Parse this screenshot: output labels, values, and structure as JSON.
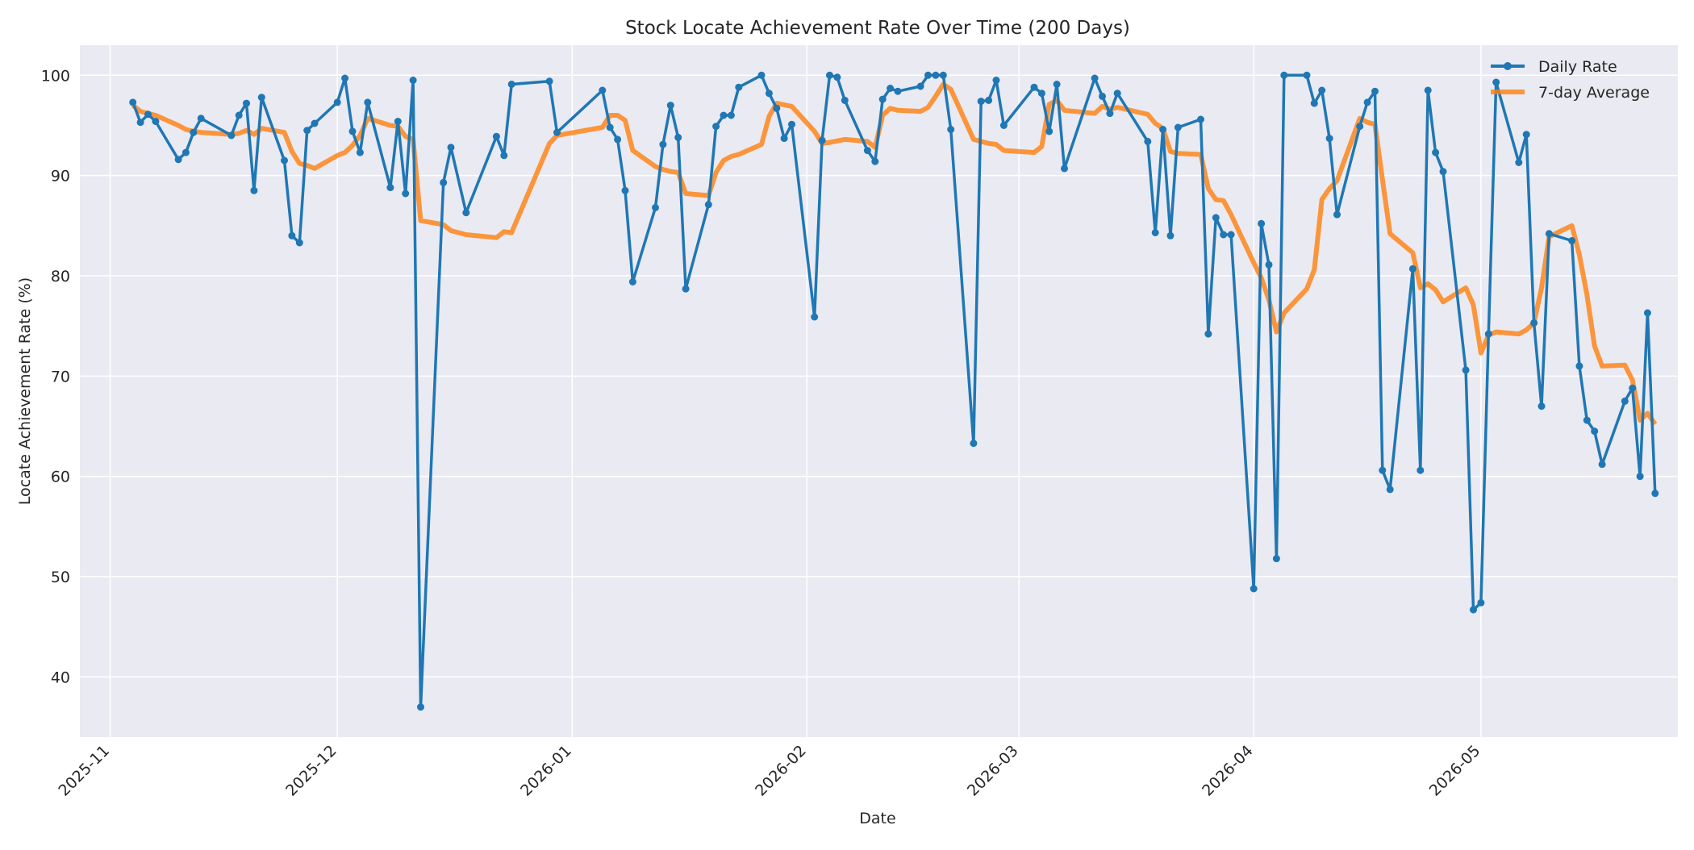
{
  "chart_data": {
    "type": "line",
    "title": "Stock Locate Achievement Rate Over Time (200 Days)",
    "xlabel": "Date",
    "ylabel": "Locate Achievement Rate (%)",
    "x_range": [
      "2025-10-28",
      "2026-05-27"
    ],
    "ylim": [
      34,
      103
    ],
    "y_ticks": [
      40,
      50,
      60,
      70,
      80,
      90,
      100
    ],
    "x_ticks": [
      {
        "date": "2025-11-01",
        "label": "2025-11"
      },
      {
        "date": "2025-12-01",
        "label": "2025-12"
      },
      {
        "date": "2026-01-01",
        "label": "2026-01"
      },
      {
        "date": "2026-02-01",
        "label": "2026-02"
      },
      {
        "date": "2026-03-01",
        "label": "2026-03"
      },
      {
        "date": "2026-04-01",
        "label": "2026-04"
      },
      {
        "date": "2026-05-01",
        "label": "2026-05"
      }
    ],
    "grid": true,
    "legend_position": "top-right",
    "colors": {
      "daily": "#1f77b4",
      "avg": "#ff7f0e",
      "plot_bg": "#eaeaf2"
    },
    "series": [
      {
        "name": "Daily Rate",
        "style": "line-markers",
        "points": [
          [
            "2025-11-04",
            97.3
          ],
          [
            "2025-11-05",
            95.3
          ],
          [
            "2025-11-06",
            96.1
          ],
          [
            "2025-11-07",
            95.4
          ],
          [
            "2025-11-10",
            91.6
          ],
          [
            "2025-11-11",
            92.3
          ],
          [
            "2025-11-12",
            94.3
          ],
          [
            "2025-11-13",
            95.7
          ],
          [
            "2025-11-17",
            94.0
          ],
          [
            "2025-11-18",
            96.0
          ],
          [
            "2025-11-19",
            97.2
          ],
          [
            "2025-11-20",
            88.5
          ],
          [
            "2025-11-21",
            97.8
          ],
          [
            "2025-11-24",
            91.5
          ],
          [
            "2025-11-25",
            84.0
          ],
          [
            "2025-11-26",
            83.3
          ],
          [
            "2025-11-27",
            94.5
          ],
          [
            "2025-11-28",
            95.2
          ],
          [
            "2025-12-01",
            97.3
          ],
          [
            "2025-12-02",
            99.7
          ],
          [
            "2025-12-03",
            94.4
          ],
          [
            "2025-12-04",
            92.3
          ],
          [
            "2025-12-05",
            97.3
          ],
          [
            "2025-12-08",
            88.8
          ],
          [
            "2025-12-09",
            95.4
          ],
          [
            "2025-12-10",
            88.2
          ],
          [
            "2025-12-11",
            99.5
          ],
          [
            "2025-12-12",
            37.0
          ],
          [
            "2025-12-15",
            89.3
          ],
          [
            "2025-12-16",
            92.8
          ],
          [
            "2025-12-18",
            86.3
          ],
          [
            "2025-12-22",
            93.9
          ],
          [
            "2025-12-23",
            92.0
          ],
          [
            "2025-12-24",
            99.1
          ],
          [
            "2025-12-29",
            99.4
          ],
          [
            "2025-12-30",
            94.3
          ],
          [
            "2026-01-05",
            98.5
          ],
          [
            "2026-01-06",
            94.8
          ],
          [
            "2026-01-07",
            93.6
          ],
          [
            "2026-01-08",
            88.5
          ],
          [
            "2026-01-09",
            79.4
          ],
          [
            "2026-01-12",
            86.8
          ],
          [
            "2026-01-13",
            93.1
          ],
          [
            "2026-01-14",
            97.0
          ],
          [
            "2026-01-15",
            93.8
          ],
          [
            "2026-01-16",
            78.7
          ],
          [
            "2026-01-19",
            87.1
          ],
          [
            "2026-01-20",
            94.9
          ],
          [
            "2026-01-21",
            96.0
          ],
          [
            "2026-01-22",
            96.0
          ],
          [
            "2026-01-23",
            98.8
          ],
          [
            "2026-01-26",
            100.0
          ],
          [
            "2026-01-27",
            98.2
          ],
          [
            "2026-01-28",
            96.7
          ],
          [
            "2026-01-29",
            93.7
          ],
          [
            "2026-01-30",
            95.1
          ],
          [
            "2026-02-02",
            75.9
          ],
          [
            "2026-02-03",
            93.5
          ],
          [
            "2026-02-04",
            100.0
          ],
          [
            "2026-02-05",
            99.8
          ],
          [
            "2026-02-06",
            97.5
          ],
          [
            "2026-02-09",
            92.5
          ],
          [
            "2026-02-10",
            91.4
          ],
          [
            "2026-02-11",
            97.6
          ],
          [
            "2026-02-12",
            98.7
          ],
          [
            "2026-02-13",
            98.4
          ],
          [
            "2026-02-16",
            98.9
          ],
          [
            "2026-02-17",
            100.0
          ],
          [
            "2026-02-18",
            100.0
          ],
          [
            "2026-02-19",
            100.0
          ],
          [
            "2026-02-20",
            94.6
          ],
          [
            "2026-02-23",
            63.3
          ],
          [
            "2026-02-24",
            97.4
          ],
          [
            "2026-02-25",
            97.5
          ],
          [
            "2026-02-26",
            99.5
          ],
          [
            "2026-02-27",
            95.0
          ],
          [
            "2026-03-03",
            98.8
          ],
          [
            "2026-03-04",
            98.2
          ],
          [
            "2026-03-05",
            94.4
          ],
          [
            "2026-03-06",
            99.1
          ],
          [
            "2026-03-07",
            90.7
          ],
          [
            "2026-03-11",
            99.7
          ],
          [
            "2026-03-12",
            97.9
          ],
          [
            "2026-03-13",
            96.2
          ],
          [
            "2026-03-14",
            98.2
          ],
          [
            "2026-03-18",
            93.4
          ],
          [
            "2026-03-19",
            84.3
          ],
          [
            "2026-03-20",
            94.6
          ],
          [
            "2026-03-21",
            84.0
          ],
          [
            "2026-03-22",
            94.8
          ],
          [
            "2026-03-25",
            95.6
          ],
          [
            "2026-03-26",
            74.2
          ],
          [
            "2026-03-27",
            85.8
          ],
          [
            "2026-03-28",
            84.1
          ],
          [
            "2026-03-29",
            84.1
          ],
          [
            "2026-04-01",
            48.8
          ],
          [
            "2026-04-02",
            85.2
          ],
          [
            "2026-04-03",
            81.1
          ],
          [
            "2026-04-04",
            51.8
          ],
          [
            "2026-04-05",
            100.0
          ],
          [
            "2026-04-08",
            100.0
          ],
          [
            "2026-04-09",
            97.2
          ],
          [
            "2026-04-10",
            98.5
          ],
          [
            "2026-04-11",
            93.7
          ],
          [
            "2026-04-12",
            86.1
          ],
          [
            "2026-04-15",
            94.9
          ],
          [
            "2026-04-16",
            97.3
          ],
          [
            "2026-04-17",
            98.4
          ],
          [
            "2026-04-18",
            60.6
          ],
          [
            "2026-04-19",
            58.7
          ],
          [
            "2026-04-22",
            80.7
          ],
          [
            "2026-04-23",
            60.6
          ],
          [
            "2026-04-24",
            98.5
          ],
          [
            "2026-04-25",
            92.3
          ],
          [
            "2026-04-26",
            90.4
          ],
          [
            "2026-04-29",
            70.6
          ],
          [
            "2026-04-30",
            46.7
          ],
          [
            "2026-05-01",
            47.4
          ],
          [
            "2026-05-02",
            74.2
          ],
          [
            "2026-05-03",
            99.3
          ],
          [
            "2026-05-06",
            91.3
          ],
          [
            "2026-05-07",
            94.1
          ],
          [
            "2026-05-08",
            75.3
          ],
          [
            "2026-05-09",
            67.0
          ],
          [
            "2026-05-10",
            84.2
          ],
          [
            "2026-05-13",
            83.5
          ],
          [
            "2026-05-14",
            71.0
          ],
          [
            "2026-05-15",
            65.6
          ],
          [
            "2026-05-16",
            64.5
          ],
          [
            "2026-05-17",
            61.2
          ],
          [
            "2026-05-20",
            67.5
          ],
          [
            "2026-05-21",
            68.8
          ],
          [
            "2026-05-22",
            60.0
          ],
          [
            "2026-05-23",
            76.3
          ],
          [
            "2026-05-24",
            58.3
          ]
        ]
      },
      {
        "name": "7-day Average",
        "style": "line",
        "points": [
          [
            "2025-11-04",
            97.0
          ],
          [
            "2025-11-05",
            96.4
          ],
          [
            "2025-11-06",
            96.2
          ],
          [
            "2025-11-07",
            96.0
          ],
          [
            "2025-11-10",
            95.0
          ],
          [
            "2025-11-11",
            94.6
          ],
          [
            "2025-11-12",
            94.4
          ],
          [
            "2025-11-13",
            94.3
          ],
          [
            "2025-11-17",
            94.1
          ],
          [
            "2025-11-18",
            94.2
          ],
          [
            "2025-11-19",
            94.5
          ],
          [
            "2025-11-20",
            94.1
          ],
          [
            "2025-11-21",
            94.7
          ],
          [
            "2025-11-24",
            94.3
          ],
          [
            "2025-11-25",
            92.4
          ],
          [
            "2025-11-26",
            91.2
          ],
          [
            "2025-11-27",
            91.0
          ],
          [
            "2025-11-28",
            90.7
          ],
          [
            "2025-12-01",
            92.0
          ],
          [
            "2025-12-02",
            92.3
          ],
          [
            "2025-12-03",
            93.0
          ],
          [
            "2025-12-04",
            94.0
          ],
          [
            "2025-12-05",
            95.7
          ],
          [
            "2025-12-08",
            95.0
          ],
          [
            "2025-12-09",
            94.9
          ],
          [
            "2025-12-10",
            93.9
          ],
          [
            "2025-12-11",
            93.6
          ],
          [
            "2025-12-12",
            85.5
          ],
          [
            "2025-12-15",
            85.1
          ],
          [
            "2025-12-16",
            84.5
          ],
          [
            "2025-12-18",
            84.1
          ],
          [
            "2025-12-22",
            83.8
          ],
          [
            "2025-12-23",
            84.4
          ],
          [
            "2025-12-24",
            84.3
          ],
          [
            "2025-12-29",
            93.2
          ],
          [
            "2025-12-30",
            94.0
          ],
          [
            "2026-01-05",
            94.8
          ],
          [
            "2026-01-06",
            96.0
          ],
          [
            "2026-01-07",
            96.0
          ],
          [
            "2026-01-08",
            95.5
          ],
          [
            "2026-01-09",
            92.5
          ],
          [
            "2026-01-12",
            90.9
          ],
          [
            "2026-01-13",
            90.6
          ],
          [
            "2026-01-14",
            90.4
          ],
          [
            "2026-01-15",
            90.3
          ],
          [
            "2026-01-16",
            88.2
          ],
          [
            "2026-01-19",
            88.0
          ],
          [
            "2026-01-20",
            90.3
          ],
          [
            "2026-01-21",
            91.5
          ],
          [
            "2026-01-22",
            91.9
          ],
          [
            "2026-01-23",
            92.1
          ],
          [
            "2026-01-26",
            93.1
          ],
          [
            "2026-01-27",
            95.9
          ],
          [
            "2026-01-28",
            97.2
          ],
          [
            "2026-01-30",
            96.9
          ],
          [
            "2026-02-02",
            94.4
          ],
          [
            "2026-02-03",
            93.2
          ],
          [
            "2026-02-04",
            93.3
          ],
          [
            "2026-02-06",
            93.6
          ],
          [
            "2026-02-09",
            93.4
          ],
          [
            "2026-02-10",
            92.8
          ],
          [
            "2026-02-11",
            96.0
          ],
          [
            "2026-02-12",
            96.7
          ],
          [
            "2026-02-13",
            96.5
          ],
          [
            "2026-02-16",
            96.4
          ],
          [
            "2026-02-17",
            96.8
          ],
          [
            "2026-02-18",
            97.9
          ],
          [
            "2026-02-19",
            99.1
          ],
          [
            "2026-02-20",
            98.6
          ],
          [
            "2026-02-23",
            93.6
          ],
          [
            "2026-02-24",
            93.4
          ],
          [
            "2026-02-25",
            93.2
          ],
          [
            "2026-02-26",
            93.1
          ],
          [
            "2026-02-27",
            92.5
          ],
          [
            "2026-03-03",
            92.3
          ],
          [
            "2026-03-04",
            92.9
          ],
          [
            "2026-03-05",
            97.1
          ],
          [
            "2026-03-06",
            97.5
          ],
          [
            "2026-03-07",
            96.5
          ],
          [
            "2026-03-11",
            96.2
          ],
          [
            "2026-03-12",
            96.9
          ],
          [
            "2026-03-13",
            96.6
          ],
          [
            "2026-03-14",
            96.8
          ],
          [
            "2026-03-18",
            96.1
          ],
          [
            "2026-03-19",
            95.2
          ],
          [
            "2026-03-20",
            94.7
          ],
          [
            "2026-03-21",
            92.4
          ],
          [
            "2026-03-22",
            92.2
          ],
          [
            "2026-03-25",
            92.1
          ],
          [
            "2026-03-26",
            88.7
          ],
          [
            "2026-03-27",
            87.6
          ],
          [
            "2026-03-28",
            87.5
          ],
          [
            "2026-03-29",
            86.1
          ],
          [
            "2026-04-01",
            81.3
          ],
          [
            "2026-04-02",
            79.8
          ],
          [
            "2026-04-03",
            77.6
          ],
          [
            "2026-04-04",
            74.4
          ],
          [
            "2026-04-05",
            76.3
          ],
          [
            "2026-04-08",
            78.7
          ],
          [
            "2026-04-09",
            80.6
          ],
          [
            "2026-04-10",
            87.6
          ],
          [
            "2026-04-11",
            88.7
          ],
          [
            "2026-04-12",
            89.5
          ],
          [
            "2026-04-15",
            95.7
          ],
          [
            "2026-04-16",
            95.3
          ],
          [
            "2026-04-17",
            95.1
          ],
          [
            "2026-04-18",
            89.6
          ],
          [
            "2026-04-19",
            84.2
          ],
          [
            "2026-04-22",
            82.3
          ],
          [
            "2026-04-23",
            78.8
          ],
          [
            "2026-04-24",
            79.2
          ],
          [
            "2026-04-25",
            78.6
          ],
          [
            "2026-04-26",
            77.4
          ],
          [
            "2026-04-29",
            78.8
          ],
          [
            "2026-04-30",
            77.1
          ],
          [
            "2026-05-01",
            72.3
          ],
          [
            "2026-05-02",
            74.1
          ],
          [
            "2026-05-03",
            74.4
          ],
          [
            "2026-05-06",
            74.2
          ],
          [
            "2026-05-07",
            74.6
          ],
          [
            "2026-05-08",
            75.3
          ],
          [
            "2026-05-09",
            78.8
          ],
          [
            "2026-05-10",
            83.9
          ],
          [
            "2026-05-13",
            85.0
          ],
          [
            "2026-05-14",
            82.1
          ],
          [
            "2026-05-15",
            78.1
          ],
          [
            "2026-05-16",
            73.0
          ],
          [
            "2026-05-17",
            71.0
          ],
          [
            "2026-05-20",
            71.1
          ],
          [
            "2026-05-21",
            69.6
          ],
          [
            "2026-05-22",
            65.6
          ],
          [
            "2026-05-23",
            66.3
          ],
          [
            "2026-05-24",
            65.2
          ]
        ]
      }
    ]
  }
}
